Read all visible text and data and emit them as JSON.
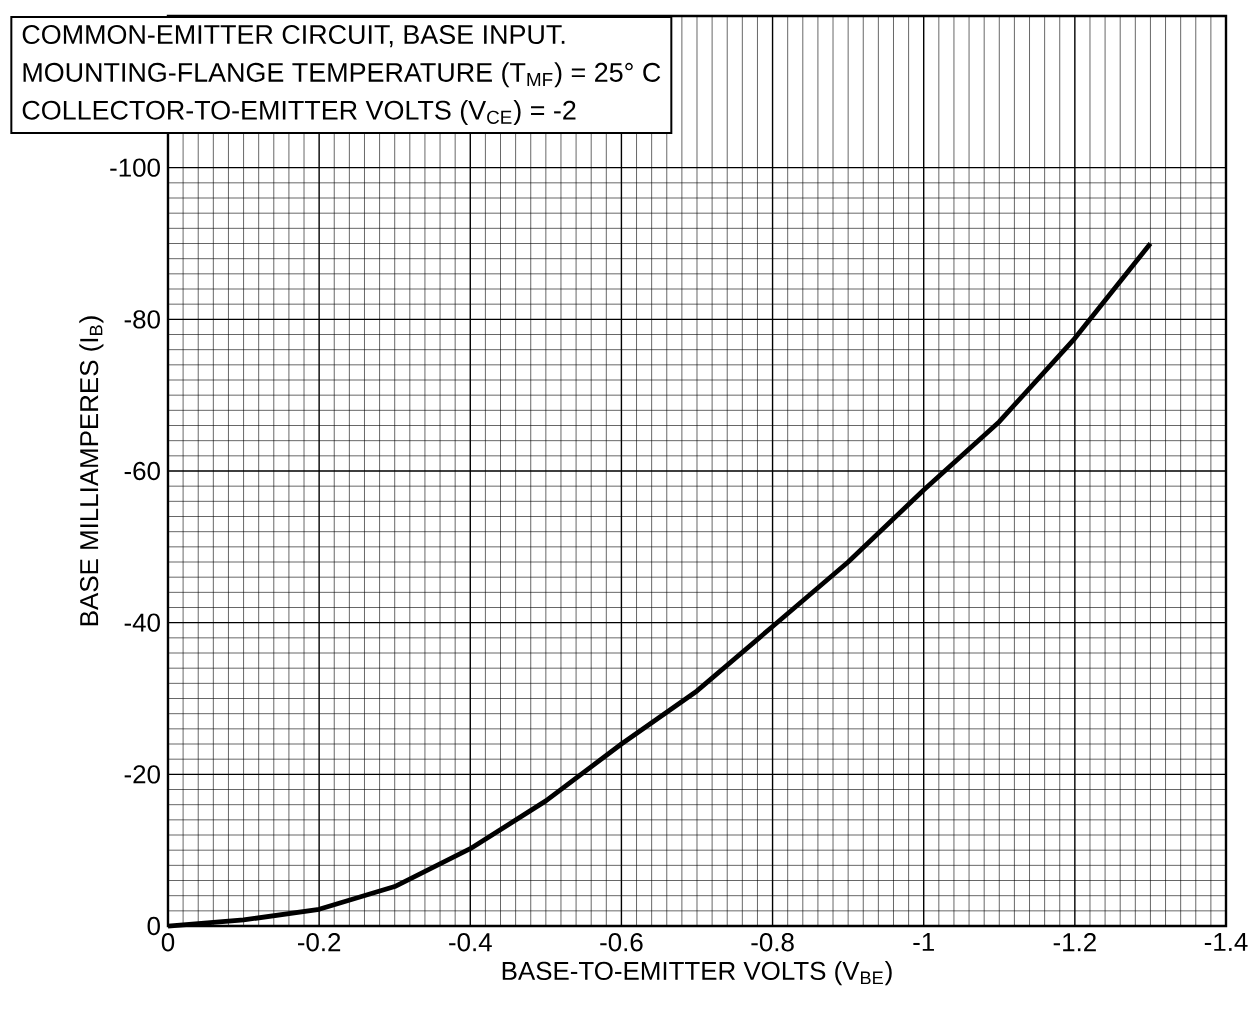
{
  "chart_data": {
    "type": "line",
    "title": "COMMON-EMITTER CIRCUIT, BASE INPUT.",
    "annotations": [
      "MOUNTING-FLANGE TEMPERATURE (T$_{MF}$) = 25° C",
      "COLLECTOR-TO-EMITTER VOLTS (V$_{CE}$) = -2"
    ],
    "xlabel": "BASE-TO-EMITTER VOLTS (V$_{BE}$)",
    "ylabel": "BASE MILLIAMPERES (I$_{B}$)",
    "x": [
      0,
      -0.1,
      -0.2,
      -0.3,
      -0.4,
      -0.5,
      -0.6,
      -0.7,
      -0.8,
      -0.9,
      -1.0,
      -1.1,
      -1.2,
      -1.3
    ],
    "series": [
      {
        "color": "#000000",
        "values": [
          0,
          -0.8,
          -2.2,
          -5.2,
          -10.2,
          -16.5,
          -24,
          -31,
          -39.5,
          -48,
          -57.5,
          -66.5,
          -77.5,
          -90
        ]
      }
    ],
    "xlim": [
      0,
      -1.4
    ],
    "ylim": [
      0,
      -120
    ],
    "xticks": [
      0,
      -0.2,
      -0.4,
      -0.6,
      -0.8,
      -1,
      -1.2,
      -1.4
    ],
    "yticks": [
      0,
      -20,
      -40,
      -60,
      -80,
      -100
    ],
    "grid": true
  }
}
